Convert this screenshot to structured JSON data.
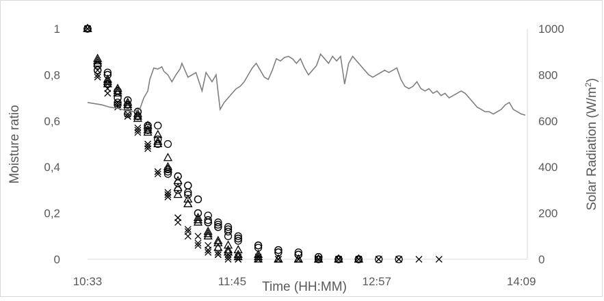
{
  "chart_data": {
    "type": "scatter",
    "title": "",
    "xlabel": "Time  (HH:MM)",
    "ylabel": "Moisture ratio",
    "y2label_main": "Solar Radiation (W/m",
    "y2label_sup": "2",
    "y2label_end": ")",
    "x_unit": "minutes since midnight",
    "xlim": [
      633,
      852
    ],
    "x_ticks": [
      {
        "label": "10:33",
        "value": 633
      },
      {
        "label": "11:45",
        "value": 705
      },
      {
        "label": "12:57",
        "value": 777
      },
      {
        "label": "14:09",
        "value": 849
      }
    ],
    "ylim": [
      0,
      1
    ],
    "y_ticks": [
      "0",
      "0,2",
      "0,4",
      "0,6",
      "0,8",
      "1"
    ],
    "y2lim": [
      0,
      1000
    ],
    "y2_ticks": [
      "0",
      "200",
      "400",
      "600",
      "800",
      "1000"
    ],
    "grid": false,
    "legend": "none",
    "colors": {
      "markers": "#000000",
      "line": "#7f7f7f",
      "axis": "#d9d9d9",
      "text": "#595959"
    },
    "series": [
      {
        "marker": "circle",
        "axis": "left",
        "x": [
          633,
          638,
          643,
          648,
          653,
          658,
          663,
          668,
          673,
          678,
          683,
          688,
          693,
          698,
          703,
          708,
          718,
          728,
          738,
          748,
          758,
          768
        ],
        "y": [
          1.0,
          0.84,
          0.8,
          0.73,
          0.69,
          0.64,
          0.58,
          0.5,
          0.39,
          0.36,
          0.32,
          0.26,
          0.19,
          0.16,
          0.14,
          0.1,
          0.06,
          0.04,
          0.02,
          0.01,
          0.0,
          0.0
        ]
      },
      {
        "marker": "circle",
        "axis": "left",
        "x": [
          633,
          638,
          643,
          648,
          653,
          658,
          663,
          668,
          673,
          678,
          683,
          688,
          693,
          698,
          703,
          708,
          718,
          728,
          738,
          748,
          758,
          768
        ],
        "y": [
          1.0,
          0.84,
          0.81,
          0.7,
          0.67,
          0.64,
          0.57,
          0.52,
          0.37,
          0.33,
          0.29,
          0.2,
          0.17,
          0.15,
          0.13,
          0.09,
          0.06,
          0.04,
          0.03,
          0.01,
          0.0,
          0.0
        ]
      },
      {
        "marker": "circle",
        "axis": "left",
        "x": [
          633,
          638,
          643,
          648,
          653,
          658,
          663,
          668,
          673,
          678,
          683,
          688,
          693,
          698,
          703,
          708,
          718,
          728,
          738,
          748,
          758,
          768
        ],
        "y": [
          1.0,
          0.82,
          0.76,
          0.67,
          0.63,
          0.62,
          0.56,
          0.5,
          0.38,
          0.3,
          0.28,
          0.2,
          0.16,
          0.14,
          0.12,
          0.08,
          0.05,
          0.03,
          0.02,
          0.0,
          0.0,
          0.0
        ]
      },
      {
        "marker": "circle",
        "axis": "left",
        "x": [
          633,
          638,
          643,
          648,
          653,
          658,
          663,
          668,
          673,
          678,
          683,
          688,
          693,
          698,
          703,
          708,
          718,
          728,
          738,
          748,
          758,
          768,
          778,
          788
        ],
        "y": [
          1.0,
          0.82,
          0.8,
          0.68,
          0.69,
          0.64,
          0.58,
          0.58,
          0.5,
          0.36,
          0.32,
          0.26,
          0.16,
          0.14,
          0.1,
          0.09,
          0.06,
          0.03,
          0.02,
          0.01,
          0.0,
          0.0,
          0.0,
          0.0
        ]
      },
      {
        "marker": "triangle",
        "axis": "left",
        "x": [
          633,
          638,
          643,
          648,
          653,
          658,
          663,
          668,
          673,
          678,
          683,
          688,
          693,
          698,
          703,
          708,
          718,
          728,
          738,
          748,
          758,
          768
        ],
        "y": [
          1.0,
          0.87,
          0.78,
          0.74,
          0.67,
          0.63,
          0.58,
          0.54,
          0.44,
          0.34,
          0.26,
          0.18,
          0.12,
          0.08,
          0.06,
          0.04,
          0.02,
          0.0,
          0.0,
          0.0,
          0.0,
          0.0
        ]
      },
      {
        "marker": "triangle",
        "axis": "left",
        "x": [
          633,
          638,
          643,
          648,
          653,
          658,
          663,
          668,
          673,
          678,
          683,
          688,
          693,
          698,
          703,
          708,
          718,
          728,
          738,
          748,
          758,
          768
        ],
        "y": [
          1.0,
          0.85,
          0.77,
          0.72,
          0.66,
          0.61,
          0.55,
          0.5,
          0.4,
          0.31,
          0.24,
          0.17,
          0.11,
          0.05,
          0.03,
          0.02,
          0.01,
          0.0,
          0.0,
          0.0,
          0.0,
          0.0
        ]
      },
      {
        "marker": "triangle",
        "axis": "left",
        "x": [
          633,
          638,
          643,
          648,
          653,
          658,
          663,
          668,
          673,
          678,
          683,
          688,
          693,
          698,
          703,
          708,
          718,
          728,
          738,
          748,
          758,
          768
        ],
        "y": [
          1.0,
          0.86,
          0.76,
          0.73,
          0.68,
          0.62,
          0.56,
          0.51,
          0.39,
          0.28,
          0.24,
          0.16,
          0.1,
          0.07,
          0.04,
          0.01,
          0.0,
          0.0,
          0.0,
          0.0,
          0.0,
          0.0
        ]
      },
      {
        "marker": "cross",
        "axis": "left",
        "x": [
          633,
          638,
          643,
          648,
          653,
          658,
          663,
          668,
          673,
          678,
          683,
          688,
          693,
          698,
          703,
          708,
          718,
          728,
          738,
          748,
          758,
          768,
          778,
          788,
          798,
          808
        ],
        "y": [
          1.0,
          0.79,
          0.72,
          0.67,
          0.62,
          0.56,
          0.48,
          0.37,
          0.27,
          0.18,
          0.13,
          0.1,
          0.06,
          0.03,
          0.02,
          0.01,
          0.01,
          0.0,
          0.0,
          0.0,
          0.0,
          0.0,
          0.0,
          0.0,
          0.0,
          0.0
        ]
      },
      {
        "marker": "cross",
        "axis": "left",
        "x": [
          633,
          638,
          643,
          648,
          653,
          658,
          663,
          668,
          673,
          678,
          683,
          688,
          693,
          698,
          703,
          708,
          718,
          728,
          738,
          748,
          758,
          768
        ],
        "y": [
          1.0,
          0.8,
          0.74,
          0.66,
          0.62,
          0.55,
          0.5,
          0.38,
          0.29,
          0.18,
          0.12,
          0.07,
          0.04,
          0.02,
          0.01,
          0.0,
          0.0,
          0.0,
          0.0,
          0.0,
          0.0,
          0.0
        ]
      },
      {
        "marker": "cross",
        "axis": "left",
        "x": [
          633,
          638,
          643,
          648,
          653,
          658,
          663,
          668,
          673,
          678,
          683,
          688,
          693,
          698,
          703,
          708,
          718,
          728,
          738,
          748,
          758,
          768,
          778,
          788
        ],
        "y": [
          1.0,
          0.82,
          0.76,
          0.68,
          0.63,
          0.57,
          0.49,
          0.38,
          0.28,
          0.16,
          0.1,
          0.06,
          0.03,
          0.02,
          0.0,
          0.0,
          0.0,
          0.0,
          0.0,
          0.0,
          0.0,
          0.0,
          0.0,
          0.0
        ]
      },
      {
        "marker": "line",
        "axis": "right",
        "x": [
          633,
          640,
          644,
          648,
          650,
          652,
          656,
          659,
          661,
          663,
          664,
          666,
          668,
          670,
          671,
          673,
          675,
          677,
          679,
          680,
          683,
          687,
          690,
          692,
          695,
          697,
          699,
          701,
          703,
          705,
          707,
          709,
          711,
          713,
          715,
          717,
          719,
          721,
          723,
          725,
          727,
          729,
          731,
          733,
          735,
          737,
          739,
          741,
          743,
          745,
          747,
          749,
          751,
          753,
          755,
          757,
          759,
          761,
          763,
          765,
          767,
          769,
          771,
          773,
          775,
          777,
          779,
          781,
          783,
          785,
          787,
          789,
          791,
          793,
          795,
          797,
          799,
          801,
          803,
          805,
          807,
          809,
          811,
          813,
          815,
          817,
          819,
          821,
          823,
          825,
          827,
          829,
          831,
          833,
          835,
          837,
          839,
          841,
          843,
          845,
          847,
          849,
          851
        ],
        "y": [
          680,
          670,
          660,
          655,
          650,
          645,
          640,
          650,
          700,
          730,
          780,
          830,
          825,
          835,
          815,
          800,
          770,
          800,
          825,
          850,
          790,
          810,
          730,
          810,
          770,
          800,
          650,
          680,
          700,
          720,
          740,
          750,
          770,
          800,
          830,
          850,
          820,
          790,
          780,
          820,
          870,
          860,
          875,
          880,
          870,
          850,
          870,
          830,
          800,
          820,
          840,
          890,
          870,
          850,
          880,
          860,
          880,
          760,
          850,
          880,
          860,
          840,
          820,
          800,
          790,
          800,
          810,
          820,
          810,
          820,
          830,
          780,
          750,
          740,
          750,
          770,
          740,
          730,
          740,
          720,
          730,
          710,
          720,
          700,
          710,
          720,
          730,
          720,
          700,
          680,
          660,
          650,
          640,
          640,
          630,
          640,
          650,
          670,
          680,
          650,
          640,
          630,
          625
        ]
      }
    ]
  }
}
